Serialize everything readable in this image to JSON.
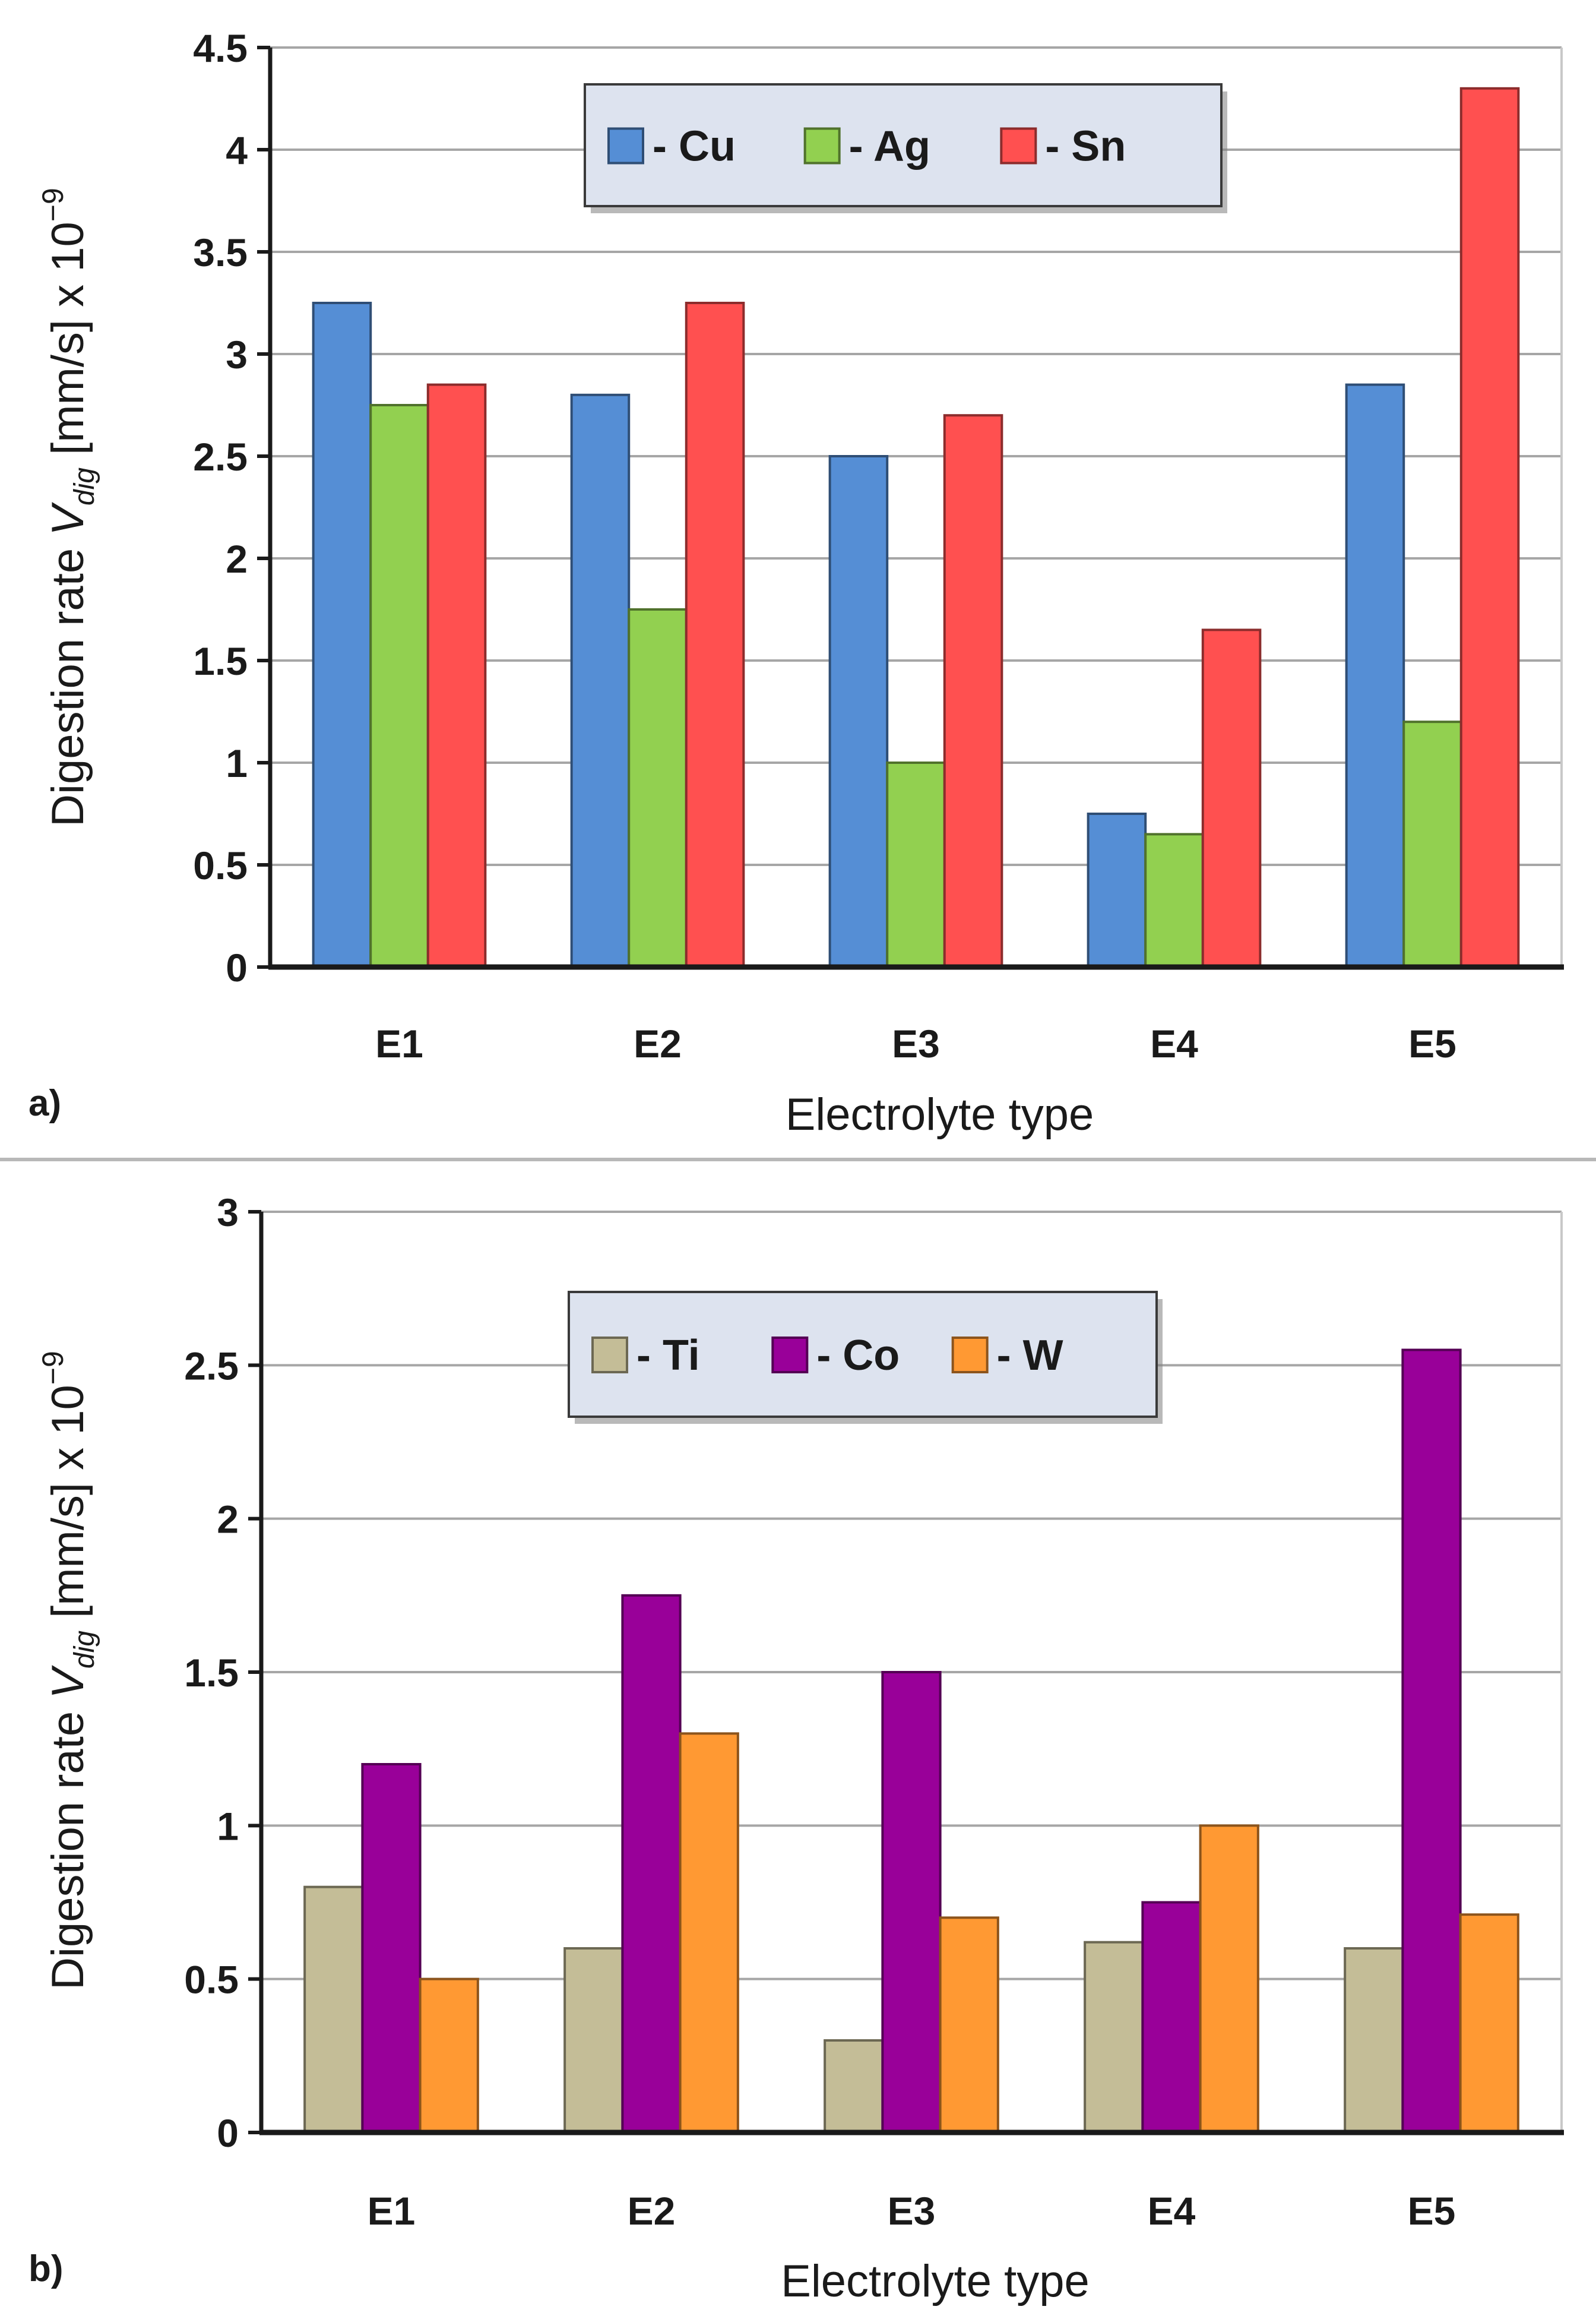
{
  "chart_data": [
    {
      "type": "bar",
      "panel_label": "a)",
      "categories": [
        "E1",
        "E2",
        "E3",
        "E4",
        "E5"
      ],
      "series": [
        {
          "name": "- Cu",
          "color": "#558ED5",
          "values": [
            3.25,
            2.8,
            2.5,
            0.75,
            2.85
          ]
        },
        {
          "name": "- Ag",
          "color": "#92D050",
          "values": [
            2.75,
            1.75,
            1.0,
            0.65,
            1.2
          ]
        },
        {
          "name": "- Sn",
          "color": "#FF5050",
          "values": [
            2.85,
            3.25,
            2.7,
            1.65,
            4.3
          ]
        }
      ],
      "yticks": [
        "0",
        "0.5",
        "1",
        "1.5",
        "2",
        "2.5",
        "3",
        "3.5",
        "4",
        "4.5"
      ],
      "ylim": [
        0,
        4.5
      ],
      "ylabel": {
        "prefix": "Digestion rate ",
        "var": "V",
        "sub": "dig",
        "suffix": " [mm/s] x 10",
        "sup": "−9"
      },
      "xlabel": "Electrolyte type",
      "grid": true,
      "legend_position": "top-center"
    },
    {
      "type": "bar",
      "panel_label": "b)",
      "categories": [
        "E1",
        "E2",
        "E3",
        "E4",
        "E5"
      ],
      "series": [
        {
          "name": "- Ti",
          "color": "#C4BD97",
          "values": [
            0.8,
            0.6,
            0.3,
            0.62,
            0.6
          ]
        },
        {
          "name": "- Co",
          "color": "#990099",
          "values": [
            1.2,
            1.75,
            1.5,
            0.75,
            2.55
          ]
        },
        {
          "name": "- W",
          "color": "#FF9933",
          "values": [
            0.5,
            1.3,
            0.7,
            1.0,
            0.71
          ]
        }
      ],
      "yticks": [
        "0",
        "0.5",
        "1",
        "1.5",
        "2",
        "2.5",
        "3"
      ],
      "ylim": [
        0,
        3
      ],
      "ylabel": {
        "prefix": "Digestion rate ",
        "var": "V",
        "sub": "dig",
        "suffix": " [mm/s] x 10",
        "sup": "−9"
      },
      "xlabel": "Electrolyte type",
      "grid": true,
      "legend_position": "top-center"
    }
  ]
}
